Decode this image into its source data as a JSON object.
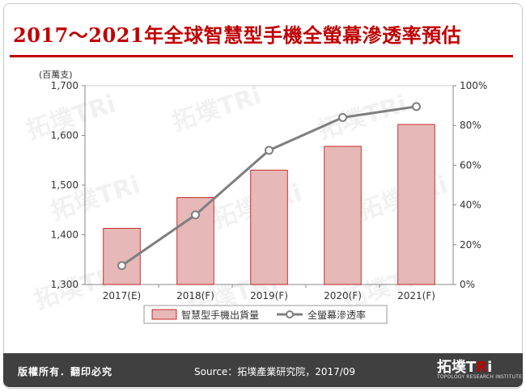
{
  "title": "2017～2021年全球智慧型手機全螢幕滲透率預估",
  "footer": {
    "rights": "版權所有．翻印必究",
    "source": "Source：拓墣產業研究院，2017/09",
    "logo_text": "拓墣TRi",
    "logo_sub": "TOPOLOGY RESEARCH INSTITUTE"
  },
  "colors": {
    "title": "#c00000",
    "bar_fill": "#e6b8b7",
    "bar_stroke": "#c00000",
    "line": "#7f7f7f",
    "footer_bg": "#404040"
  },
  "chart_data": {
    "type": "bar",
    "categories": [
      "2017(E)",
      "2018(F)",
      "2019(F)",
      "2020(F)",
      "2021(F)"
    ],
    "y_unit_label": "(百萬支)",
    "ylim": [
      1300,
      1700
    ],
    "yticks": [
      "1,300",
      "1,400",
      "1,500",
      "1,600",
      "1,700"
    ],
    "y2lim": [
      0,
      100
    ],
    "y2ticks": [
      "0%",
      "20%",
      "40%",
      "60%",
      "80%",
      "100%"
    ],
    "series": [
      {
        "name": "智慧型手機出貨量",
        "type": "bar",
        "axis": "left",
        "values": [
          1413,
          1475,
          1530,
          1578,
          1622
        ]
      },
      {
        "name": "全螢幕滲透率",
        "type": "line",
        "axis": "right",
        "values": [
          9.5,
          35,
          67.5,
          84,
          89.5
        ]
      }
    ],
    "legend_position": "bottom",
    "grid": false
  }
}
